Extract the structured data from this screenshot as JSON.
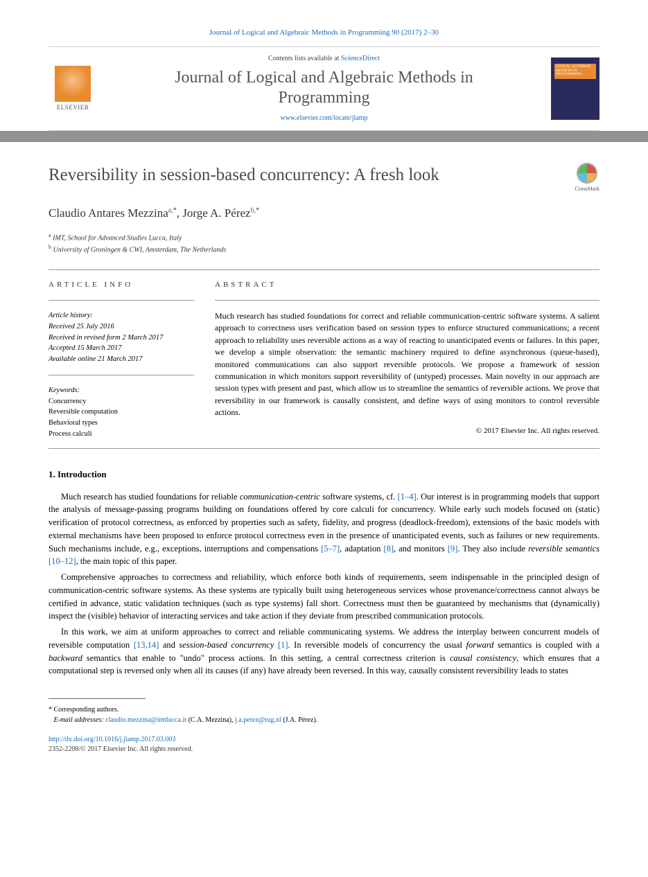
{
  "top_citation": "Journal of Logical and Algebraic Methods in Programming 90 (2017) 2–30",
  "masthead": {
    "contents_prefix": "Contents lists available at ",
    "contents_link": "ScienceDirect",
    "journal_name_line1": "Journal of Logical and Algebraic Methods in",
    "journal_name_line2": "Programming",
    "journal_url": "www.elsevier.com/locate/jlamp",
    "publisher_name": "ELSEVIER",
    "cover_label": "LOGICAL ALGEBRAIC METHODS IN PROGRAMMING"
  },
  "article": {
    "title": "Reversibility in session-based concurrency: A fresh look",
    "crossmark_label": "CrossMark",
    "authors_html": "Claudio Antares Mezzina",
    "author1_name": "Claudio Antares Mezzina",
    "author1_sup": "a,",
    "author1_star": "*",
    "sep": ", ",
    "author2_name": "Jorge A. Pérez",
    "author2_sup": "b,",
    "author2_star": "*",
    "affiliations": {
      "a": "IMT, School for Advanced Studies Lucca, Italy",
      "b": "University of Groningen & CWI, Amsterdam, The Netherlands"
    }
  },
  "info": {
    "heading": "article info",
    "history_label": "Article history:",
    "received": "Received 25 July 2016",
    "revised": "Received in revised form 2 March 2017",
    "accepted": "Accepted 15 March 2017",
    "online": "Available online 21 March 2017",
    "keywords_label": "Keywords:",
    "keywords": [
      "Concurrency",
      "Reversible computation",
      "Behavioral types",
      "Process calculi"
    ]
  },
  "abstract": {
    "heading": "abstract",
    "text": "Much research has studied foundations for correct and reliable communication-centric software systems. A salient approach to correctness uses verification based on session types to enforce structured communications; a recent approach to reliability uses reversible actions as a way of reacting to unanticipated events or failures. In this paper, we develop a simple observation: the semantic machinery required to define asynchronous (queue-based), monitored communications can also support reversible protocols. We propose a framework of session communication in which monitors support reversibility of (untyped) processes. Main novelty in our approach are session types with present and past, which allow us to streamline the semantics of reversible actions. We prove that reversibility in our framework is causally consistent, and define ways of using monitors to control reversible actions.",
    "copyright": "© 2017 Elsevier Inc. All rights reserved."
  },
  "body": {
    "section_num": "1.",
    "section_title": "Introduction",
    "para1_pre": "Much research has studied foundations for reliable ",
    "para1_em1": "communication-centric",
    "para1_mid1": " software systems, cf. ",
    "para1_ref1": "[1–4]",
    "para1_mid2": ". Our interest is in programming models that support the analysis of message-passing programs building on foundations offered by core calculi for concurrency. While early such models focused on (static) verification of protocol correctness, as enforced by properties such as safety, fidelity, and progress (deadlock-freedom), extensions of the basic models with external mechanisms have been proposed to enforce protocol correctness even in the presence of unanticipated events, such as failures or new requirements. Such mechanisms include, e.g., exceptions, interruptions and compensations ",
    "para1_ref2": "[5–7]",
    "para1_mid3": ", adaptation ",
    "para1_ref3": "[8]",
    "para1_mid4": ", and monitors ",
    "para1_ref4": "[9]",
    "para1_mid5": ". They also include ",
    "para1_em2": "reversible semantics",
    "para1_sp": " ",
    "para1_ref5": "[10–12]",
    "para1_end": ", the main topic of this paper.",
    "para2": "Comprehensive approaches to correctness and reliability, which enforce both kinds of requirements, seem indispensable in the principled design of communication-centric software systems. As these systems are typically built using heterogeneous services whose provenance/correctness cannot always be certified in advance, static validation techniques (such as type systems) fall short. Correctness must then be guaranteed by mechanisms that (dynamically) inspect the (visible) behavior of interacting services and take action if they deviate from prescribed communication protocols.",
    "para3_pre": "In this work, we aim at uniform approaches to correct and reliable communicating systems. We address the interplay between concurrent models of reversible computation ",
    "para3_ref1": "[13,14]",
    "para3_mid1": " and ",
    "para3_em1": "session-based concurrency",
    "para3_sp1": " ",
    "para3_ref2": "[1]",
    "para3_mid2": ". In reversible models of concurrency the usual ",
    "para3_em2": "forward",
    "para3_mid3": " semantics is coupled with a ",
    "para3_em3": "backward",
    "para3_mid4": " semantics that enable to \"undo\" process actions. In this setting, a central correctness criterion is ",
    "para3_em4": "causal consistency",
    "para3_end": ", which ensures that a computational step is reversed only when all its causes (if any) have already been reversed. In this way, causally consistent reversibility leads to states"
  },
  "footer": {
    "corresponding_label": "Corresponding authors.",
    "email_label": "E-mail addresses:",
    "email1": "claudio.mezzina@imtlucca.it",
    "email1_who": "(C.A. Mezzina), ",
    "email2": "j.a.perez@rug.nl",
    "email2_who": "(J.A. Pérez).",
    "doi": "http://dx.doi.org/10.1016/j.jlamp.2017.03.003",
    "issn_line": "2352-2208/© 2017 Elsevier Inc. All rights reserved."
  },
  "colors": {
    "link": "#1a6bb5",
    "bar": "#909294",
    "elsevier_orange": "#e98b2e"
  }
}
